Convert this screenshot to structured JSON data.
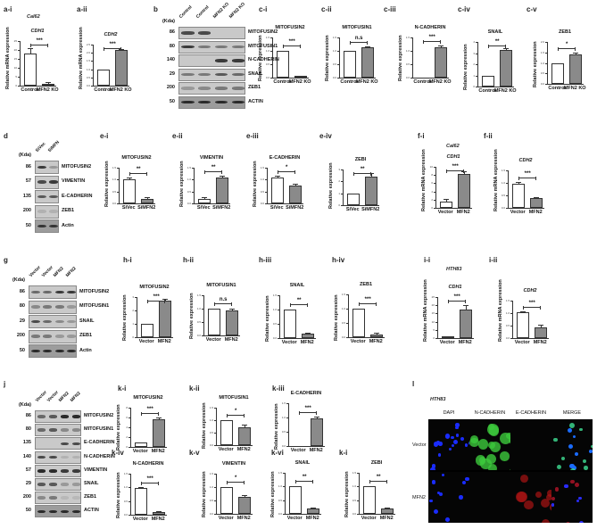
{
  "panels": {
    "a_i": {
      "label": "a-i",
      "cell_line": "Cal62"
    },
    "a_ii": {
      "label": "a-ii"
    },
    "b": {
      "label": "b",
      "cell_line": "Cal62",
      "kda_header": "(Kda)",
      "lanes": [
        "Control",
        "Control",
        "MFN2 KO",
        "MFN2 KO"
      ],
      "rows": [
        {
          "kda": "86",
          "protein": "MITOFUSIN2"
        },
        {
          "kda": "80",
          "protein": "MITOFUSIN1"
        },
        {
          "kda": "140",
          "protein": "N-CADHERIN"
        },
        {
          "kda": "29",
          "protein": "SNAIL"
        },
        {
          "kda": "200",
          "protein": "ZEB1"
        },
        {
          "kda": "50",
          "protein": "ACTIN"
        }
      ]
    },
    "c_i": {
      "label": "c-i"
    },
    "c_ii": {
      "label": "c-ii"
    },
    "c_iii": {
      "label": "c-iii"
    },
    "c_iv": {
      "label": "c-iv"
    },
    "c_v": {
      "label": "c-v"
    },
    "d": {
      "label": "d",
      "cell_line": "HTH83-MFN",
      "kda_header": "(Kda)",
      "lanes": [
        "SiVec",
        "SiMFN"
      ],
      "rows": [
        {
          "kda": "86",
          "protein": "MITOFUSIN2"
        },
        {
          "kda": "57",
          "protein": "VIMENTIN"
        },
        {
          "kda": "135",
          "protein": "E-CADHERIN"
        },
        {
          "kda": "200",
          "protein": "ZEB1"
        },
        {
          "kda": "50",
          "protein": "Actin"
        }
      ]
    },
    "e_i": {
      "label": "e-i"
    },
    "e_ii": {
      "label": "e-ii"
    },
    "e_iii": {
      "label": "e-iii"
    },
    "e_iv": {
      "label": "e-iv"
    },
    "f_i": {
      "label": "f-i",
      "cell_line": "Cal62"
    },
    "f_ii": {
      "label": "f-ii"
    },
    "g": {
      "label": "g",
      "cell_line": "Cal62",
      "kda_header": "(Kda)",
      "lanes": [
        "Vector",
        "Vector",
        "MFN2",
        "MFN2"
      ],
      "rows": [
        {
          "kda": "86",
          "protein": "MITOFUSIN2"
        },
        {
          "kda": "80",
          "protein": "MITOFUSIN1"
        },
        {
          "kda": "29",
          "protein": "SNAIL"
        },
        {
          "kda": "200",
          "protein": "ZEB1"
        },
        {
          "kda": "50",
          "protein": "Actin"
        }
      ]
    },
    "h_i": {
      "label": "h-i"
    },
    "h_ii": {
      "label": "h-ii"
    },
    "h_iii": {
      "label": "h-iii"
    },
    "h_iv": {
      "label": "h-iv"
    },
    "i_i": {
      "label": "i-i",
      "cell_line": "HTH83"
    },
    "i_ii": {
      "label": "i-ii"
    },
    "j": {
      "label": "j",
      "cell_line": "HTH83",
      "kda_header": "(Kda)",
      "lanes": [
        "Vector",
        "Vector",
        "MFN2",
        "MFN2"
      ],
      "rows": [
        {
          "kda": "86",
          "protein": "MITOFUSIN2"
        },
        {
          "kda": "80",
          "protein": "MITOFUSIN1"
        },
        {
          "kda": "135",
          "protein": "E-CADHERIN"
        },
        {
          "kda": "140",
          "protein": "N-CADHERIN"
        },
        {
          "kda": "57",
          "protein": "VIMENTIN"
        },
        {
          "kda": "29",
          "protein": "SNAIL"
        },
        {
          "kda": "200",
          "protein": "ZEB1"
        },
        {
          "kda": "50",
          "protein": "ACTIN"
        }
      ]
    },
    "k_i": {
      "label": "k-i"
    },
    "k_ii": {
      "label": "k-ii"
    },
    "k_iii": {
      "label": "k-iii"
    },
    "k_iv": {
      "label": "k-iv"
    },
    "k_v": {
      "label": "k-v"
    },
    "k_vi": {
      "label": "k-vi"
    },
    "k_i2": {
      "label": "k-i"
    },
    "l": {
      "label": "l",
      "cell_line": "HTH83",
      "columns": [
        "DAPI",
        "N-CADHERIN",
        "E-CADHERIN",
        "MERGE"
      ],
      "rows": [
        "Vector",
        "MFN2"
      ]
    }
  },
  "chart_data": [
    {
      "id": "a-i",
      "type": "bar",
      "title": "CDH1",
      "ylabel": "Relative mRNA expression",
      "categories": [
        "Control",
        "MFN2 KO"
      ],
      "values": [
        18,
        1
      ],
      "errors": [
        2.5,
        0.3
      ],
      "ylim": [
        0,
        25
      ],
      "yticks": [
        "0",
        "5",
        "10",
        "15",
        "20",
        "25"
      ],
      "significance": "***"
    },
    {
      "id": "a-ii",
      "type": "bar",
      "title": "CDH2",
      "ylabel": "Relative mRNA expression",
      "categories": [
        "Control",
        "MFN2 KO"
      ],
      "values": [
        1.0,
        2.15
      ],
      "errors": [
        0,
        0.04
      ],
      "ylim": [
        0,
        2.5
      ],
      "yticks": [
        "0.0",
        "0.5",
        "1.0",
        "1.5",
        "2.0",
        "2.5"
      ],
      "significance": "***"
    },
    {
      "id": "c-i",
      "type": "bar",
      "title": "MITOFUSIN2",
      "ylabel": "Relative expression",
      "categories": [
        "Control",
        "MFN2 KO"
      ],
      "values": [
        1.0,
        0.03
      ],
      "errors": [
        0,
        0.01
      ],
      "ylim": [
        0,
        1.5
      ],
      "yticks": [
        "0.0",
        "0.5",
        "1.0",
        "1.5"
      ],
      "significance": "***"
    },
    {
      "id": "c-ii",
      "type": "bar",
      "title": "MITOFUSIN1",
      "ylabel": "Relative expression",
      "categories": [
        "Control",
        "MFN2 KO"
      ],
      "values": [
        1.0,
        1.12
      ],
      "errors": [
        0,
        0.03
      ],
      "ylim": [
        0,
        1.5
      ],
      "yticks": [
        "0.0",
        "0.5",
        "1.0",
        "1.5"
      ],
      "significance": "n.s"
    },
    {
      "id": "c-iii",
      "type": "bar",
      "title": "N-CADHERIN",
      "ylabel": "Relative expression",
      "categories": [
        "Control",
        "MFN2 KO"
      ],
      "values": [
        0,
        1.15
      ],
      "errors": [
        0,
        0.02
      ],
      "ylim": [
        0,
        1.5
      ],
      "yticks": [
        "0.0",
        "0.5",
        "1.0",
        "1.5"
      ],
      "significance": "***"
    },
    {
      "id": "c-iv",
      "type": "bar",
      "title": "SNAIL",
      "ylabel": "Relative expression",
      "categories": [
        "Control",
        "MFN2 KO"
      ],
      "values": [
        1.0,
        3.25
      ],
      "errors": [
        0,
        0.15
      ],
      "ylim": [
        0,
        4
      ],
      "yticks": [
        "0",
        "1",
        "2",
        "3",
        "4"
      ],
      "significance": "**"
    },
    {
      "id": "c-v",
      "type": "bar",
      "title": "ZEB1",
      "ylabel": "Relative expression",
      "categories": [
        "Control",
        "MFN2 KO"
      ],
      "values": [
        1.0,
        1.4
      ],
      "errors": [
        0,
        0.06
      ],
      "ylim": [
        0,
        2.0
      ],
      "yticks": [
        "0.0",
        "0.5",
        "1.0",
        "1.5",
        "2.0"
      ],
      "significance": "*"
    },
    {
      "id": "e-i",
      "type": "bar",
      "title": "MITOFUSIN2",
      "ylabel": "Relative expression",
      "categories": [
        "SiVec",
        "SiMFN2"
      ],
      "values": [
        1.03,
        0.2
      ],
      "errors": [
        0.02,
        0.02
      ],
      "ylim": [
        0,
        1.5
      ],
      "yticks": [
        "0.0",
        "0.5",
        "1.0",
        "1.5"
      ],
      "significance": "**"
    },
    {
      "id": "e-ii",
      "type": "bar",
      "title": "VIMENTIN",
      "ylabel": "Relative expression",
      "categories": [
        "SiVec",
        "SiMFN2"
      ],
      "values": [
        0.2,
        1.07
      ],
      "errors": [
        0.02,
        0.04
      ],
      "ylim": [
        0,
        1.5
      ],
      "yticks": [
        "0.0",
        "0.5",
        "1.0",
        "1.5"
      ],
      "significance": "**"
    },
    {
      "id": "e-iii",
      "type": "bar",
      "title": "E-CADHERIN",
      "ylabel": "Relative expression",
      "categories": [
        "SiVec",
        "SiMFN2"
      ],
      "values": [
        1.1,
        0.75
      ],
      "errors": [
        0.04,
        0.02
      ],
      "ylim": [
        0,
        1.5
      ],
      "yticks": [
        "0.0",
        "0.5",
        "1.0",
        "1.5"
      ],
      "significance": "*"
    },
    {
      "id": "e-iv",
      "type": "bar",
      "title": "ZEBI",
      "ylabel": "Relative expression",
      "categories": [
        "SiVec",
        "SiMFN2"
      ],
      "values": [
        1.0,
        2.4
      ],
      "errors": [
        0,
        0.25
      ],
      "ylim": [
        0,
        3
      ],
      "yticks": [
        "0",
        "1",
        "2",
        "3"
      ],
      "significance": "**"
    },
    {
      "id": "f-i",
      "type": "bar",
      "title": "CDH1",
      "ylabel": "Relative mRNA expression",
      "categories": [
        "Vector",
        "MFN2"
      ],
      "values": [
        1.6,
        8.2
      ],
      "errors": [
        0.3,
        0.4
      ],
      "ylim": [
        0,
        10
      ],
      "yticks": [
        "0",
        "2",
        "4",
        "6",
        "8",
        "10"
      ],
      "significance": "***"
    },
    {
      "id": "f-ii",
      "type": "bar",
      "title": "CDH2",
      "ylabel": "Relative mRNA expression",
      "categories": [
        "Vector",
        "MFN2"
      ],
      "values": [
        0.98,
        0.4
      ],
      "errors": [
        0.01,
        0.01
      ],
      "ylim": [
        0,
        1.5
      ],
      "yticks": [
        "0.0",
        "0.5",
        "1.0",
        "1.5"
      ],
      "significance": "***"
    },
    {
      "id": "h-i",
      "type": "bar",
      "title": "MITOFUSIN2",
      "ylabel": "Relative expression",
      "categories": [
        "Vector",
        "MFN2"
      ],
      "values": [
        1.0,
        2.75
      ],
      "errors": [
        0,
        0.06
      ],
      "ylim": [
        0,
        3
      ],
      "yticks": [
        "0",
        "1",
        "2",
        "3"
      ],
      "significance": "***"
    },
    {
      "id": "h-ii",
      "type": "bar",
      "title": "MITOFUSIN1",
      "ylabel": "Relative expression",
      "categories": [
        "Vector",
        "MFN2"
      ],
      "values": [
        1.0,
        0.92
      ],
      "errors": [
        0,
        0.04
      ],
      "ylim": [
        0,
        1.5
      ],
      "yticks": [
        "0.0",
        "0.5",
        "1.0",
        "1.5"
      ],
      "significance": "n.s"
    },
    {
      "id": "h-iii",
      "type": "bar",
      "title": "SNAIL",
      "ylabel": "Relative expression",
      "categories": [
        "Vector",
        "MFN2"
      ],
      "values": [
        1.0,
        0.15
      ],
      "errors": [
        0,
        0.01
      ],
      "ylim": [
        0,
        1.5
      ],
      "yticks": [
        "0.0",
        "0.5",
        "1.0",
        "1.5"
      ],
      "significance": "**"
    },
    {
      "id": "h-iv",
      "type": "bar",
      "title": "ZEB1",
      "ylabel": "Relative expression",
      "categories": [
        "Vector",
        "MFN2"
      ],
      "values": [
        1.0,
        0.1
      ],
      "errors": [
        0,
        0.02
      ],
      "ylim": [
        0,
        1.5
      ],
      "yticks": [
        "0.0",
        "0.5",
        "1.0",
        "1.5"
      ],
      "significance": "***"
    },
    {
      "id": "i-i",
      "type": "bar",
      "title": "CDH1",
      "ylabel": "Relative mRNA expression",
      "categories": [
        "Vector",
        "MFN2"
      ],
      "values": [
        0.3,
        17.5
      ],
      "errors": [
        0.05,
        2.2
      ],
      "ylim": [
        0,
        25
      ],
      "yticks": [
        "0",
        "5",
        "10",
        "15",
        "20",
        "25"
      ],
      "significance": "***"
    },
    {
      "id": "i-ii",
      "type": "bar",
      "title": "CDH2",
      "ylabel": "Relative mRNA expression",
      "categories": [
        "Vector",
        "MFN2"
      ],
      "values": [
        1.03,
        0.44
      ],
      "errors": [
        0.02,
        0.06
      ],
      "ylim": [
        0,
        1.5
      ],
      "yticks": [
        "0.0",
        "0.5",
        "1.0",
        "1.5"
      ],
      "significance": "***"
    },
    {
      "id": "k-i",
      "type": "bar",
      "title": "MITOFUSIN2",
      "ylabel": "Relative expression",
      "categories": [
        "Vector",
        "MFN2"
      ],
      "values": [
        1.0,
        5.7
      ],
      "errors": [
        0,
        0.15
      ],
      "ylim": [
        0,
        8
      ],
      "yticks": [
        "0",
        "2",
        "4",
        "6",
        "8"
      ],
      "significance": "***"
    },
    {
      "id": "k-ii",
      "type": "bar",
      "title": "MITOFUSIN1",
      "ylabel": "Relative expression",
      "categories": [
        "Vector",
        "MFN2"
      ],
      "values": [
        1.0,
        0.73
      ],
      "errors": [
        0,
        0.04
      ],
      "ylim": [
        0,
        1.5
      ],
      "yticks": [
        "0.0",
        "0.5",
        "1.0",
        "1.5"
      ],
      "significance": "*"
    },
    {
      "id": "k-iii",
      "type": "bar",
      "title": "E-CADHERIN",
      "ylabel": "Relative expression",
      "categories": [
        "Vector",
        "MFN2"
      ],
      "values": [
        0,
        0.97
      ],
      "errors": [
        0,
        0.02
      ],
      "ylim": [
        0,
        1.5
      ],
      "yticks": [
        "0.0",
        "0.5",
        "1.0",
        "1.5"
      ],
      "significance": "***"
    },
    {
      "id": "k-iv",
      "type": "bar",
      "title": "N-CADHERIN",
      "ylabel": "Relative expression",
      "categories": [
        "Vector",
        "MFN2"
      ],
      "values": [
        0.97,
        0.1
      ],
      "errors": [
        0.01,
        0.01
      ],
      "ylim": [
        0,
        1.5
      ],
      "yticks": [
        "0.0",
        "0.5",
        "1.0",
        "1.5"
      ],
      "significance": "***"
    },
    {
      "id": "k-v",
      "type": "bar",
      "title": "VIMENTIN",
      "ylabel": "Relative expression",
      "categories": [
        "Vector",
        "MFN2"
      ],
      "values": [
        1.0,
        0.65
      ],
      "errors": [
        0,
        0.03
      ],
      "ylim": [
        0,
        1.5
      ],
      "yticks": [
        "0.0",
        "0.5",
        "1.0",
        "1.5"
      ],
      "significance": "*"
    },
    {
      "id": "k-vi",
      "type": "bar",
      "title": "SNAIL",
      "ylabel": "Relative expression",
      "categories": [
        "Vector",
        "MFN2"
      ],
      "values": [
        1.0,
        0.18
      ],
      "errors": [
        0,
        0.01
      ],
      "ylim": [
        0,
        1.5
      ],
      "yticks": [
        "0.0",
        "0.5",
        "1.0",
        "1.5"
      ],
      "significance": "**"
    },
    {
      "id": "k-i(2)",
      "type": "bar",
      "title": "ZEBI",
      "ylabel": "Relative expression",
      "categories": [
        "Vector",
        "MFN2"
      ],
      "values": [
        1.0,
        0.18
      ],
      "errors": [
        0,
        0.01
      ],
      "ylim": [
        0,
        1.5
      ],
      "yticks": [
        "0.0",
        "0.5",
        "1.0",
        "1.5"
      ],
      "significance": "**"
    }
  ]
}
